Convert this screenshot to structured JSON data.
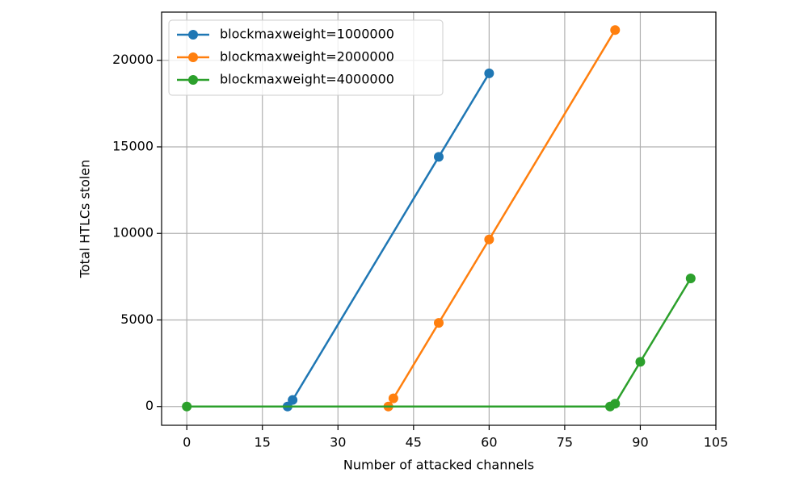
{
  "chart_data": {
    "type": "line",
    "xlabel": "Number of attacked channels",
    "ylabel": "Total HTLCs stolen",
    "xlim": [
      -5,
      105
    ],
    "ylim": [
      -1085,
      22785
    ],
    "xticks": [
      0,
      15,
      30,
      45,
      60,
      75,
      90,
      105
    ],
    "yticks": [
      0,
      5000,
      10000,
      15000,
      20000
    ],
    "grid": true,
    "legend": "upper left",
    "series": [
      {
        "name": "blockmaxweight=1000000",
        "color": "#1f77b4",
        "x": [
          20,
          21,
          50,
          60
        ],
        "values": [
          0,
          375,
          14420,
          19250
        ]
      },
      {
        "name": "blockmaxweight=2000000",
        "color": "#ff7f0e",
        "x": [
          40,
          41,
          50,
          60,
          85
        ],
        "values": [
          0,
          470,
          4830,
          9650,
          21750
        ]
      },
      {
        "name": "blockmaxweight=4000000",
        "color": "#2ca02c",
        "x": [
          0,
          84,
          85,
          90,
          100
        ],
        "values": [
          0,
          0,
          160,
          2580,
          7400
        ]
      }
    ]
  }
}
